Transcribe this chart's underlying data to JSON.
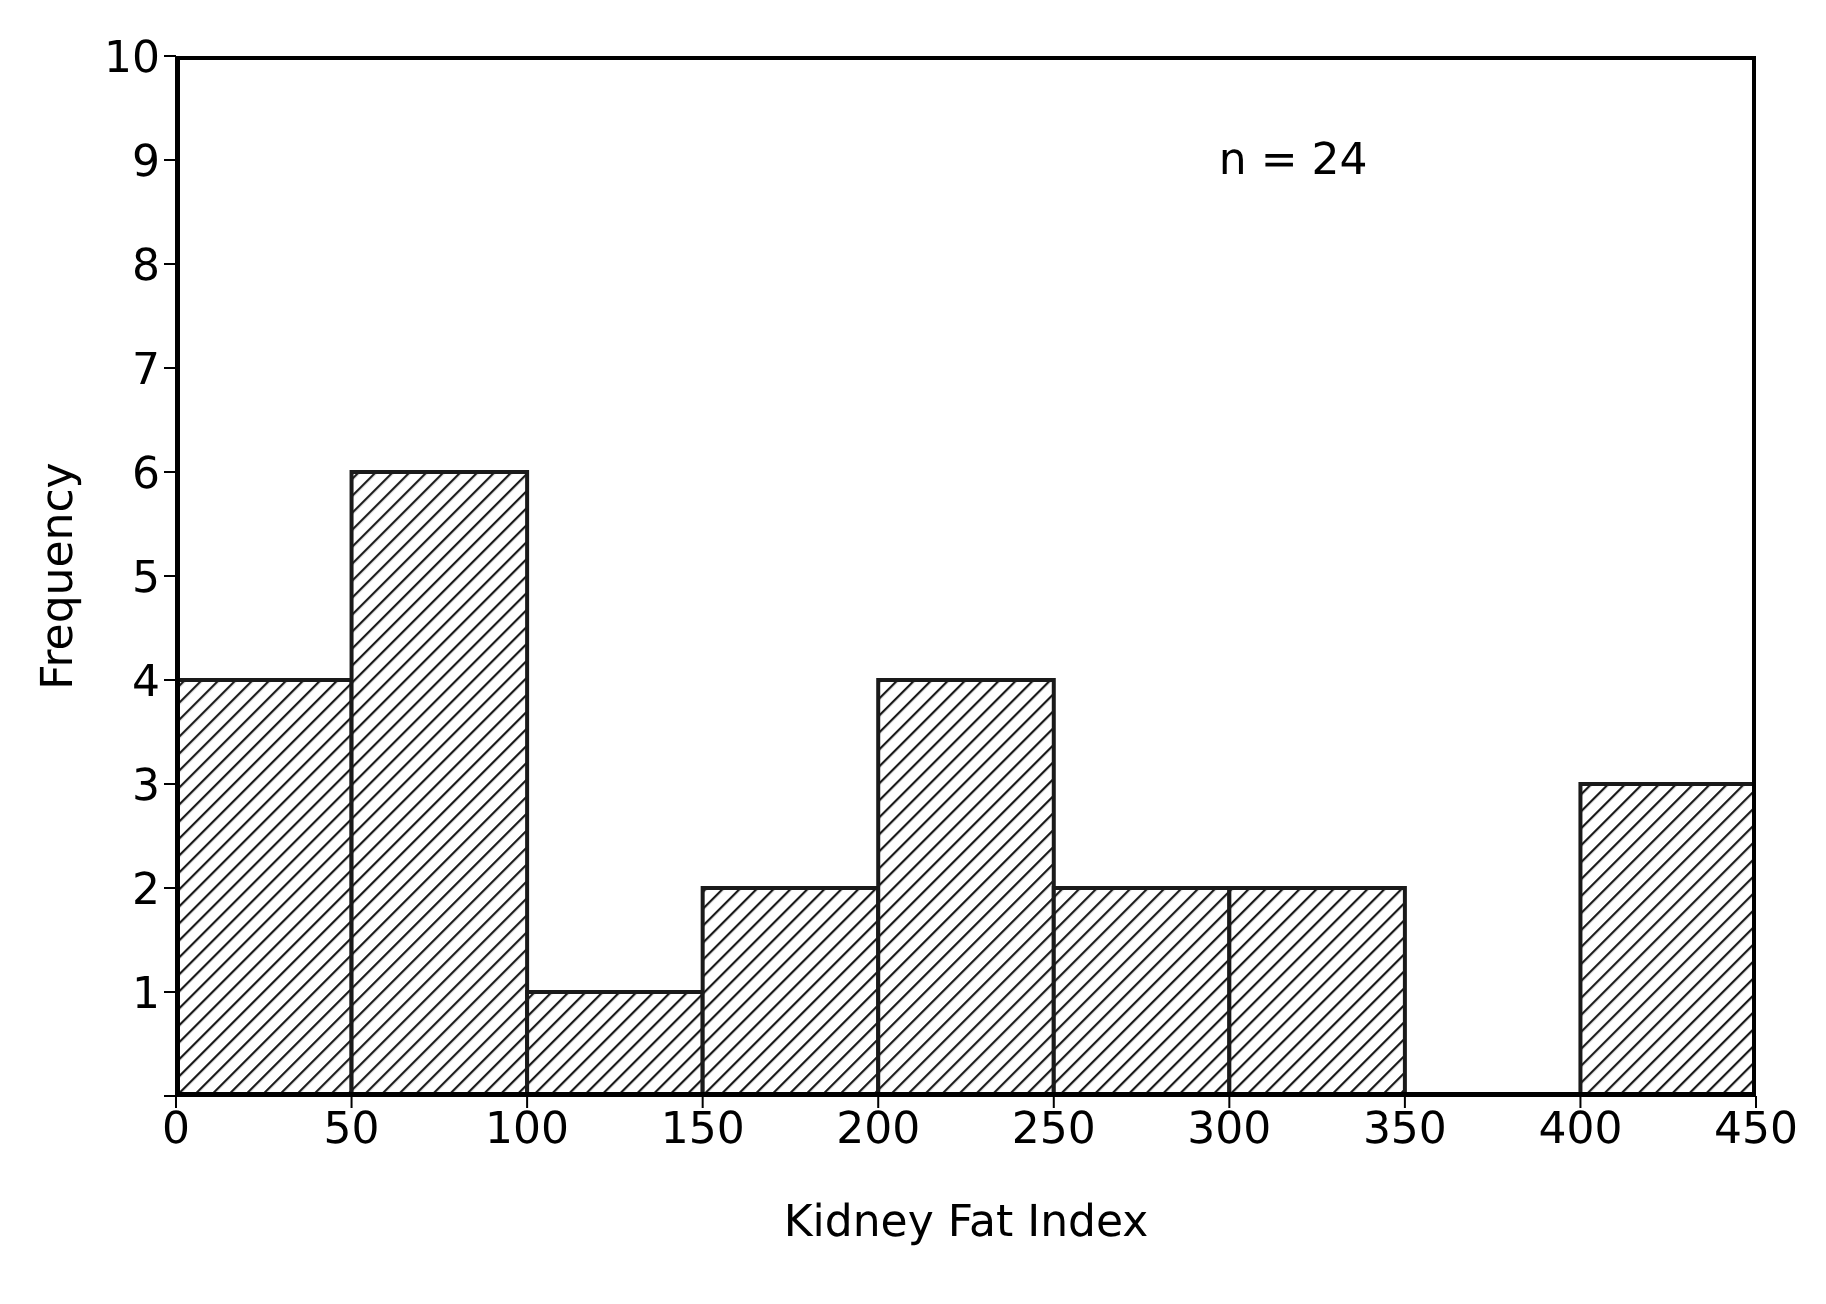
{
  "chart_data": {
    "type": "histogram",
    "xlabel": "Kidney Fat Index",
    "ylabel": "Frequency",
    "bins": [
      0,
      50,
      100,
      150,
      200,
      250,
      300,
      350,
      400,
      450
    ],
    "values": [
      4,
      6,
      1,
      2,
      4,
      2,
      2,
      0,
      3
    ],
    "color": "#1a1a1a",
    "xlim": [
      0,
      450
    ],
    "xticks": [
      0,
      50,
      100,
      150,
      200,
      250,
      300,
      350,
      400,
      450
    ],
    "ylim": [
      0,
      10
    ],
    "yticks": [
      {
        "value": 0,
        "label": null
      },
      1,
      2,
      3,
      4,
      5,
      6,
      7,
      8,
      9,
      10
    ],
    "annotations": [
      "n = 24"
    ]
  }
}
